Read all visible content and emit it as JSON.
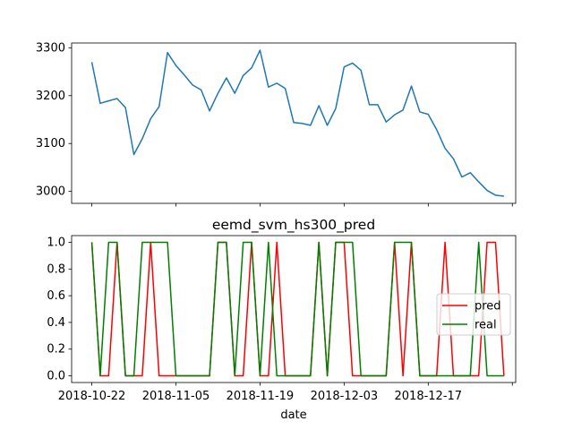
{
  "chart_data": [
    {
      "type": "line",
      "title": "",
      "xlabel": "",
      "ylabel": "",
      "x": [
        0,
        1,
        2,
        3,
        4,
        5,
        6,
        7,
        8,
        9,
        10,
        11,
        12,
        13,
        14,
        15,
        16,
        17,
        18,
        19,
        20,
        21,
        22,
        23,
        24,
        25,
        26,
        27,
        28,
        29,
        30,
        31,
        32,
        33,
        34,
        35,
        36,
        37,
        38,
        39,
        40,
        41,
        42,
        43,
        44,
        45,
        46,
        47,
        48,
        49
      ],
      "series": [
        {
          "color": "#1f77b4",
          "values": [
            3270,
            3184,
            3189,
            3194,
            3175,
            3077,
            3110,
            3152,
            3177,
            3290,
            3263,
            3243,
            3222,
            3212,
            3168,
            3205,
            3237,
            3205,
            3242,
            3258,
            3295,
            3218,
            3226,
            3215,
            3144,
            3142,
            3138,
            3179,
            3138,
            3173,
            3260,
            3268,
            3253,
            3181,
            3181,
            3145,
            3160,
            3170,
            3220,
            3166,
            3161,
            3129,
            3090,
            3068,
            3030,
            3039,
            3020,
            3002,
            2992,
            2990
          ]
        }
      ],
      "ylim": [
        2975,
        3310
      ],
      "yticks": [
        3000,
        3100,
        3200,
        3300
      ],
      "xlim": [
        -2.4,
        50.4
      ],
      "xticks": [
        0,
        10,
        20,
        30,
        40,
        50
      ],
      "xticklabels": [
        "",
        "",
        "",
        "",
        "",
        ""
      ],
      "grid": false
    },
    {
      "type": "line",
      "title": "eemd_svm_hs300_pred",
      "xlabel": "date",
      "ylabel": "",
      "x": [
        0,
        1,
        2,
        3,
        4,
        5,
        6,
        7,
        8,
        9,
        10,
        11,
        12,
        13,
        14,
        15,
        16,
        17,
        18,
        19,
        20,
        21,
        22,
        23,
        24,
        25,
        26,
        27,
        28,
        29,
        30,
        31,
        32,
        33,
        34,
        35,
        36,
        37,
        38,
        39,
        40,
        41,
        42,
        43,
        44,
        45,
        46,
        47,
        48,
        49
      ],
      "series": [
        {
          "name": "pred",
          "color": "#ff0000",
          "values": [
            1,
            0,
            0,
            1,
            0,
            0,
            0,
            1,
            0,
            0,
            0,
            0,
            0,
            0,
            0,
            1,
            1,
            0,
            0,
            1,
            0,
            0,
            1,
            0,
            0,
            0,
            0,
            1,
            0,
            1,
            1,
            0,
            0,
            0,
            0,
            0,
            1,
            0,
            1,
            0,
            0,
            0,
            1,
            0,
            0,
            0,
            0,
            1,
            1,
            0
          ]
        },
        {
          "name": "real",
          "color": "#008000",
          "values": [
            1,
            0,
            1,
            1,
            0,
            0,
            1,
            1,
            1,
            1,
            0,
            0,
            0,
            0,
            0,
            1,
            1,
            0,
            1,
            1,
            0,
            1,
            0,
            0,
            0,
            0,
            0,
            1,
            0,
            1,
            1,
            1,
            0,
            0,
            0,
            0,
            1,
            1,
            1,
            0,
            0,
            0,
            0,
            0,
            0,
            0,
            1,
            0,
            0,
            0
          ]
        }
      ],
      "ylim": [
        -0.05,
        1.05
      ],
      "yticks": [
        0.0,
        0.2,
        0.4,
        0.6,
        0.8,
        1.0
      ],
      "yticklabels": [
        "0.0",
        "0.2",
        "0.4",
        "0.6",
        "0.8",
        "1.0"
      ],
      "xlim": [
        -2.4,
        50.4
      ],
      "xticks": [
        0,
        10,
        20,
        30,
        40,
        50
      ],
      "xticklabels": [
        "2018-10-22",
        "2018-11-05",
        "2018-11-19",
        "2018-12-03",
        "2018-12-17",
        ""
      ],
      "legend": "center-right",
      "grid": false
    }
  ]
}
